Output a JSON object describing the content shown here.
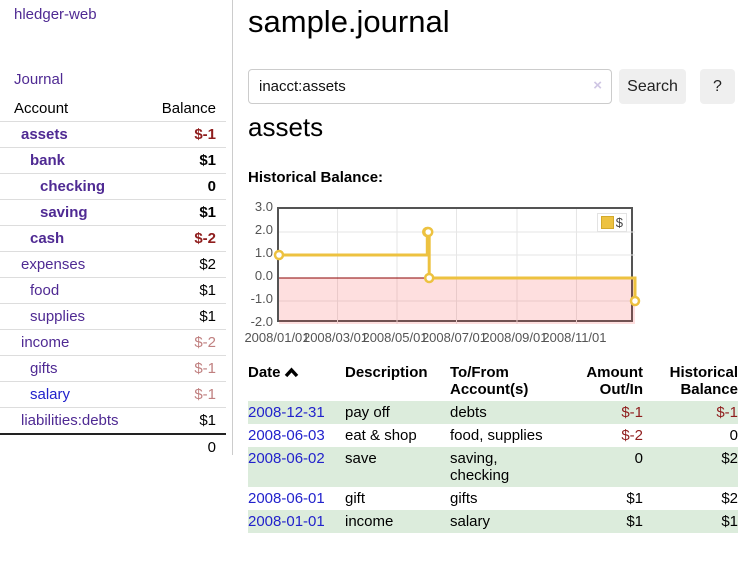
{
  "app": {
    "brand": "hledger-web",
    "nav": {
      "journal": "Journal"
    }
  },
  "sidebar": {
    "headers": {
      "account": "Account",
      "balance": "Balance"
    },
    "accounts": [
      {
        "name": "assets",
        "balance": "$-1"
      },
      {
        "name": "bank",
        "balance": "$1"
      },
      {
        "name": "checking",
        "balance": "0"
      },
      {
        "name": "saving",
        "balance": "$1"
      },
      {
        "name": "cash",
        "balance": "$-2"
      },
      {
        "name": "expenses",
        "balance": "$2"
      },
      {
        "name": "food",
        "balance": "$1"
      },
      {
        "name": "supplies",
        "balance": "$1"
      },
      {
        "name": "income",
        "balance": "$-2"
      },
      {
        "name": "gifts",
        "balance": "$-1"
      },
      {
        "name": "salary",
        "balance": "$-1"
      },
      {
        "name": "liabilities:debts",
        "balance": "$1"
      }
    ],
    "total": "0"
  },
  "main": {
    "title": "sample.journal",
    "search": {
      "value": "inacct:assets",
      "clear_icon": "×",
      "button_label": "Search",
      "help_label": "?"
    },
    "account_heading": "assets",
    "chart_title": "Historical Balance:"
  },
  "chart_data": {
    "type": "line",
    "title": "Historical Balance",
    "step": true,
    "x_range": [
      "2008-01-01",
      "2008-12-31"
    ],
    "ylim": [
      -2,
      3
    ],
    "grid": true,
    "negative_region_shaded": true,
    "legend_position": "top-right",
    "series": [
      {
        "name": "$",
        "color": "#edc240",
        "points": [
          {
            "x": "2008-01-01",
            "y": 1
          },
          {
            "x": "2008-06-01",
            "y": 2
          },
          {
            "x": "2008-06-02",
            "y": 2
          },
          {
            "x": "2008-06-03",
            "y": 0
          },
          {
            "x": "2008-12-31",
            "y": -1
          }
        ]
      }
    ],
    "y_ticks": [
      {
        "value": 3,
        "label": "3.0"
      },
      {
        "value": 2,
        "label": "2.0"
      },
      {
        "value": 1,
        "label": "1.0"
      },
      {
        "value": 0,
        "label": "0.0"
      },
      {
        "value": -1,
        "label": "-1.0"
      },
      {
        "value": -2,
        "label": "-2.0"
      }
    ],
    "x_ticks": [
      {
        "date": "2008-01-01",
        "label": "2008/01/01"
      },
      {
        "date": "2008-03-01",
        "label": "2008/03/01"
      },
      {
        "date": "2008-05-01",
        "label": "2008/05/01"
      },
      {
        "date": "2008-07-01",
        "label": "2008/07/01"
      },
      {
        "date": "2008-09-01",
        "label": "2008/09/01"
      },
      {
        "date": "2008-11-01",
        "label": "2008/11/01"
      }
    ]
  },
  "register": {
    "headers": {
      "date": "Date",
      "description": "Description",
      "tofrom_line1": "To/From",
      "tofrom_line2": "Account(s)",
      "amount_line1": "Amount",
      "amount_line2": "Out/In",
      "hist_line1": "Historical",
      "hist_line2": "Balance"
    },
    "rows": [
      {
        "date": "2008-12-31",
        "description": "pay off",
        "accounts": "debts",
        "amount": "$-1",
        "balance": "$-1"
      },
      {
        "date": "2008-06-03",
        "description": "eat & shop",
        "accounts": "food, supplies",
        "amount": "$-2",
        "balance": "0"
      },
      {
        "date": "2008-06-02",
        "description": "save",
        "accounts": "saving,\nchecking",
        "amount": "0",
        "balance": "$2"
      },
      {
        "date": "2008-06-01",
        "description": "gift",
        "accounts": "gifts",
        "amount": "$1",
        "balance": "$2"
      },
      {
        "date": "2008-01-01",
        "description": "income",
        "accounts": "salary",
        "amount": "$1",
        "balance": "$1"
      }
    ]
  },
  "colors": {
    "link_purple": "#4f2a93",
    "link_blue": "#2222cc",
    "negative": "#8f1d1d",
    "negative_muted": "#c08080",
    "row_stripe": "#dcecdc",
    "chart_line": "#edc240",
    "chart_negative_fill": "#fbdada",
    "zero_line": "#8b0000",
    "chart_border": "#545454"
  }
}
